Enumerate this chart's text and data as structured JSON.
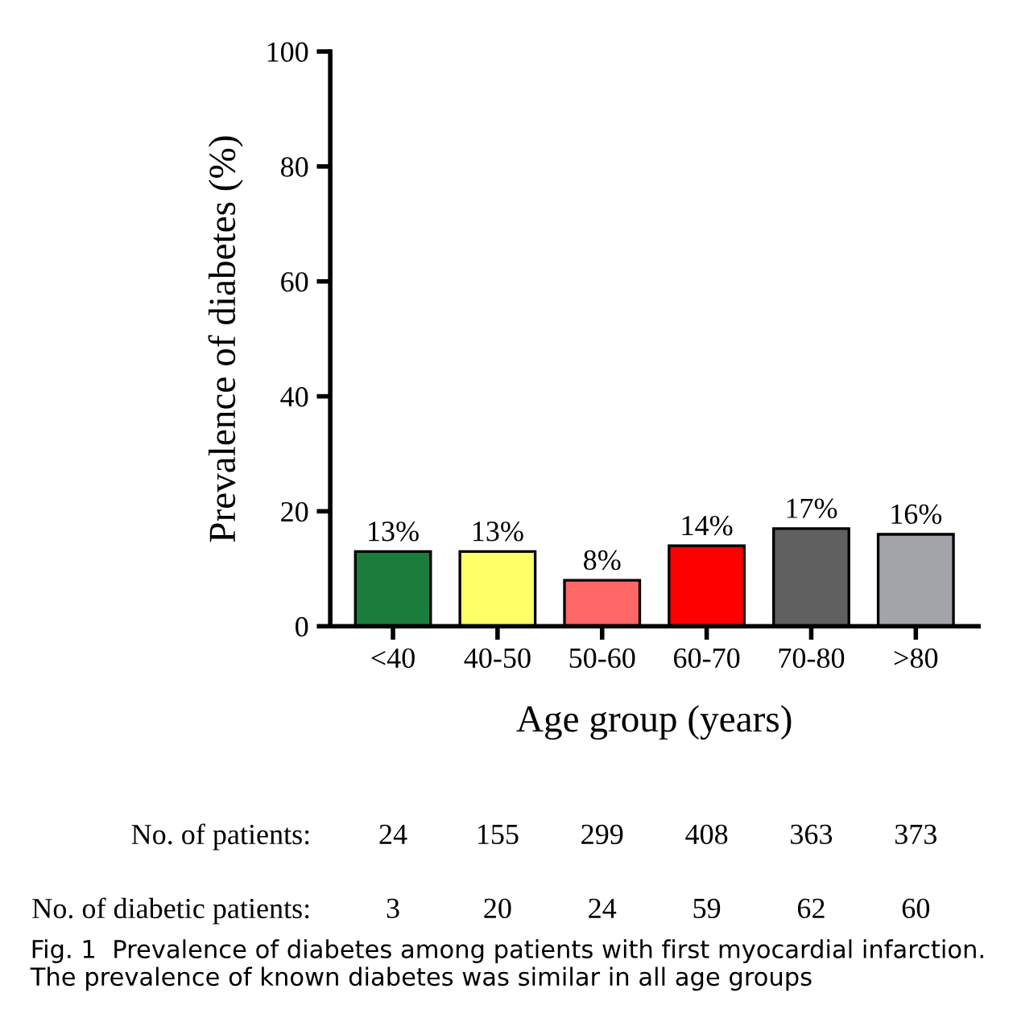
{
  "chart_data": {
    "type": "bar",
    "categories": [
      "<40",
      "40-50",
      "50-60",
      "60-70",
      "70-80",
      ">80"
    ],
    "values": [
      13,
      13,
      8,
      14,
      17,
      16
    ],
    "colors": [
      "#1a7d3c",
      "#ffff66",
      "#ff6666",
      "#ff0000",
      "#606060",
      "#a3a3aa"
    ],
    "value_labels": [
      "13%",
      "13%",
      "8%",
      "14%",
      "17%",
      "16%"
    ],
    "xlabel": "Age group (years)",
    "ylabel": "Prevalence of diabetes (%)",
    "ylim": [
      0,
      100
    ],
    "yticks": [
      0,
      20,
      40,
      60,
      80,
      100
    ],
    "grid": false,
    "annotations": [
      "No. of patients:",
      "24",
      "155",
      "299",
      "408",
      "363",
      "373",
      "No. of diabetic patients:",
      "3",
      "20",
      "24",
      "59",
      "62",
      "60",
      "Fig. 1  Prevalence of diabetes among patients with first myocardial infarction. The prevalence of known diabetes was similar in all age groups"
    ]
  }
}
